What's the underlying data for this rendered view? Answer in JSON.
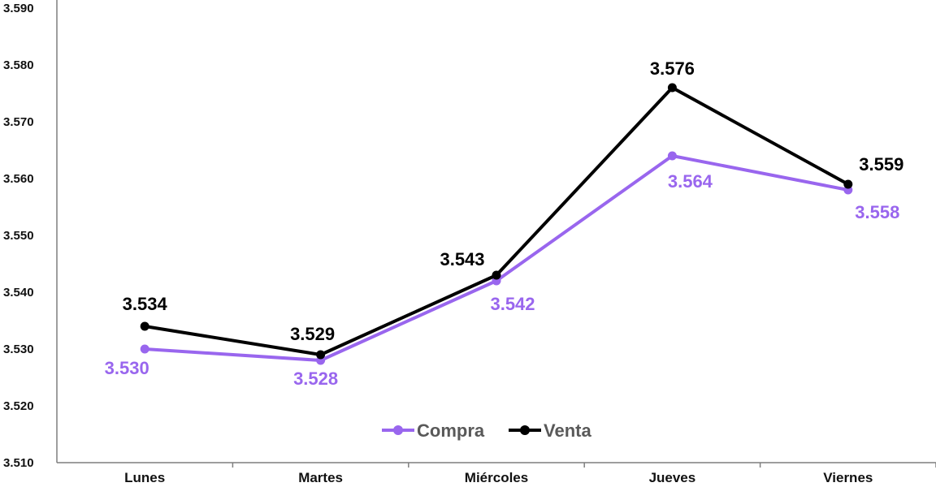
{
  "chart_data": {
    "type": "line",
    "categories": [
      "Lunes",
      "Martes",
      "Miércoles",
      "Jueves",
      "Viernes"
    ],
    "series": [
      {
        "name": "Compra",
        "values": [
          3.53,
          3.528,
          3.542,
          3.564,
          3.558
        ],
        "color": "#9966EE",
        "labels": [
          "3.530",
          "3.528",
          "3.542",
          "3.564",
          "3.558"
        ]
      },
      {
        "name": "Venta",
        "values": [
          3.534,
          3.529,
          3.543,
          3.576,
          3.559
        ],
        "color": "#000000",
        "labels": [
          "3.534",
          "3.529",
          "3.543",
          "3.576",
          "3.559"
        ]
      }
    ],
    "ylim": [
      3.51,
      3.59
    ],
    "yticks": [
      "3.510",
      "3.520",
      "3.530",
      "3.540",
      "3.550",
      "3.560",
      "3.570",
      "3.580",
      "3.590"
    ],
    "grid": false,
    "legend_position": "bottom-center"
  }
}
